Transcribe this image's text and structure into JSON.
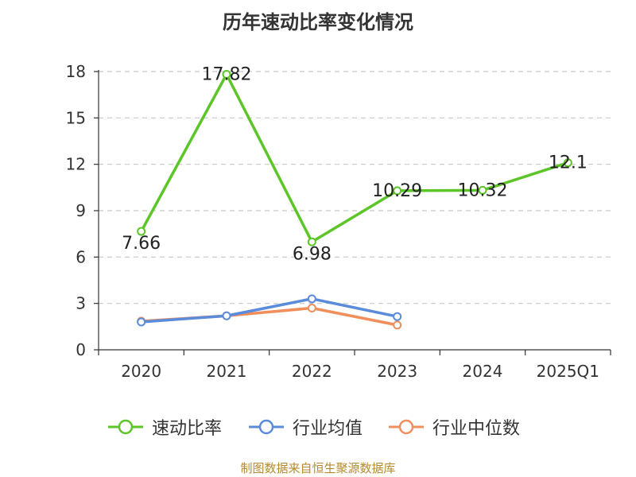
{
  "title": "历年速动比率变化情况",
  "source": "制图数据来自恒生聚源数据库",
  "colors": {
    "grid": "#c8c8c8",
    "axis": "#333333",
    "text": "#333333",
    "source": "#b58a2d"
  },
  "chart_data": {
    "type": "line",
    "title": "历年速动比率变化情况",
    "categories": [
      "2020",
      "2021",
      "2022",
      "2023",
      "2024",
      "2025Q1"
    ],
    "ylim": [
      0,
      18
    ],
    "yticks": [
      0,
      3,
      6,
      9,
      12,
      15,
      18
    ],
    "grid": true,
    "legend_position": "bottom",
    "series": [
      {
        "name": "速动比率",
        "color": "#5cc527",
        "values": [
          7.66,
          17.82,
          6.98,
          10.29,
          10.32,
          12.1
        ],
        "labels": [
          "7.66",
          "17.82",
          "6.98",
          "10.29",
          "10.32",
          "12.1"
        ]
      },
      {
        "name": "行业均值",
        "color": "#5b8bdb",
        "values": [
          1.8,
          2.2,
          3.3,
          2.15,
          null,
          null
        ],
        "labels": []
      },
      {
        "name": "行业中位数",
        "color": "#f08f5c",
        "values": [
          1.85,
          2.2,
          2.7,
          1.6,
          null,
          null
        ],
        "labels": []
      }
    ]
  }
}
